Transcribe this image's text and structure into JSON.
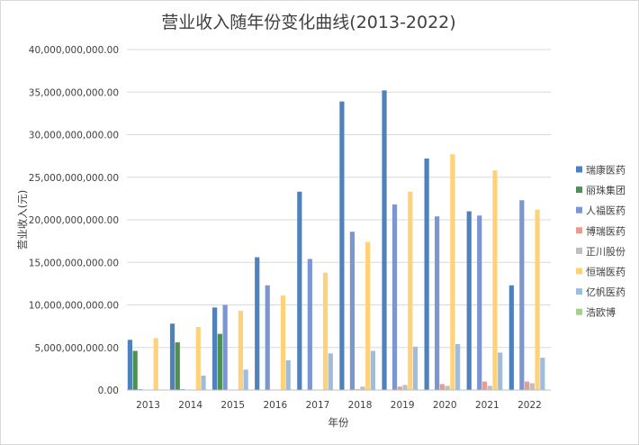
{
  "chart_data": {
    "type": "bar",
    "title": "营业收入随年份变化曲线(2013-2022)",
    "xlabel": "年份",
    "ylabel": "营业收入(元)",
    "ylim": [
      0,
      40000000000
    ],
    "y_ticks": [
      "0.00",
      "5,000,000,000.00",
      "10,000,000,000.00",
      "15,000,000,000.00",
      "20,000,000,000.00",
      "25,000,000,000.00",
      "30,000,000,000.00",
      "35,000,000,000.00",
      "40,000,000,000.00"
    ],
    "grid": true,
    "legend_position": "right",
    "categories": [
      "2013",
      "2014",
      "2015",
      "2016",
      "2017",
      "2018",
      "2019",
      "2020",
      "2021",
      "2022"
    ],
    "series": [
      {
        "name": "瑞康医药",
        "color": "#4f81bd",
        "values": [
          5900000000,
          7800000000,
          9700000000,
          15600000000,
          23300000000,
          33900000000,
          35200000000,
          27200000000,
          21000000000,
          12300000000
        ]
      },
      {
        "name": "丽珠集团",
        "color": "#4e8f52",
        "values": [
          4600000000,
          5600000000,
          6600000000,
          0,
          0,
          0,
          0,
          0,
          0,
          0
        ]
      },
      {
        "name": "人福医药",
        "color": "#7b96d1",
        "values": [
          100000000,
          100000000,
          10000000000,
          12300000000,
          15400000000,
          18600000000,
          21800000000,
          20400000000,
          20500000000,
          22300000000
        ]
      },
      {
        "name": "博瑞医药",
        "color": "#e89b91",
        "values": [
          0,
          0,
          0,
          0,
          0,
          100000000,
          400000000,
          700000000,
          1000000000,
          1000000000
        ]
      },
      {
        "name": "正川股份",
        "color": "#bfbfbf",
        "values": [
          0,
          0,
          0,
          0,
          0,
          400000000,
          600000000,
          500000000,
          500000000,
          800000000
        ]
      },
      {
        "name": "恒瑞医药",
        "color": "#ffd27a",
        "values": [
          6100000000,
          7400000000,
          9300000000,
          11100000000,
          13800000000,
          17400000000,
          23300000000,
          27700000000,
          25800000000,
          21200000000
        ]
      },
      {
        "name": "亿帆医药",
        "color": "#9fbddb",
        "values": [
          0,
          1700000000,
          2400000000,
          3500000000,
          4300000000,
          4600000000,
          5100000000,
          5400000000,
          4400000000,
          3800000000
        ]
      },
      {
        "name": "浩欧博",
        "color": "#a5d18f",
        "values": [
          0,
          0,
          0,
          0,
          0,
          0,
          0,
          0,
          0,
          0
        ]
      }
    ]
  }
}
